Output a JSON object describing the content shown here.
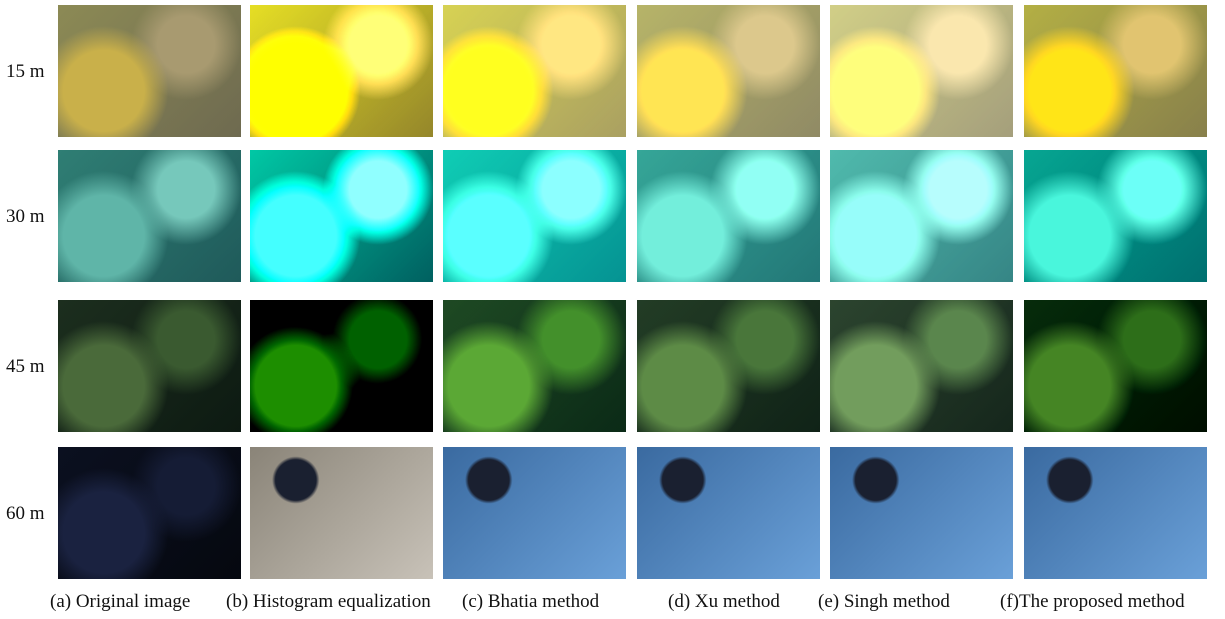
{
  "rows": [
    "15 m",
    "30 m",
    "45 m",
    "60 m"
  ],
  "columns": [
    "(a) Original image",
    "(b) Histogram equalization",
    "(c) Bhatia method",
    "(d) Xu method",
    "(e) Singh method",
    "(f)The proposed method"
  ]
}
